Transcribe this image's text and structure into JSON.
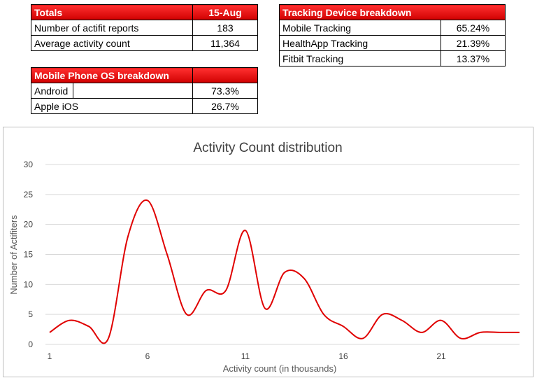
{
  "totals": {
    "header_label": "Totals",
    "header_date": "15-Aug",
    "rows": [
      {
        "label": "Number of actifit reports",
        "value": "183"
      },
      {
        "label": "Average activity count",
        "value": "11,364"
      }
    ]
  },
  "tracking": {
    "header_label": "Tracking Device breakdown",
    "rows": [
      {
        "label": "Mobile Tracking",
        "value": "65.24%"
      },
      {
        "label": "HealthApp Tracking",
        "value": "21.39%"
      },
      {
        "label": "Fitbit Tracking",
        "value": "13.37%"
      }
    ]
  },
  "os": {
    "header_label": "Mobile Phone OS breakdown",
    "rows": [
      {
        "label": "Android",
        "value": "73.3%"
      },
      {
        "label": "Apple iOS",
        "value": "26.7%"
      }
    ]
  },
  "chart_data": {
    "type": "line",
    "title": "Activity Count distribution",
    "xlabel": "Activity count (in thousands)",
    "ylabel": "Number of Actifiters",
    "x": [
      1,
      2,
      3,
      4,
      5,
      6,
      7,
      8,
      9,
      10,
      11,
      12,
      13,
      14,
      15,
      16,
      17,
      18,
      19,
      20,
      21,
      22,
      23,
      24,
      25
    ],
    "values": [
      2,
      4,
      3,
      1,
      18,
      24,
      15,
      5,
      9,
      9,
      19,
      6,
      12,
      11,
      5,
      3,
      1,
      5,
      4,
      2,
      4,
      1,
      2,
      2,
      2
    ],
    "x_tick_labels": [
      "1",
      "6",
      "11",
      "16",
      "21"
    ],
    "y_tick_labels": [
      "0",
      "5",
      "10",
      "15",
      "20",
      "25",
      "30"
    ],
    "ylim": [
      0,
      30
    ],
    "grid": true,
    "line_color": "#e00000",
    "smooth": true
  }
}
